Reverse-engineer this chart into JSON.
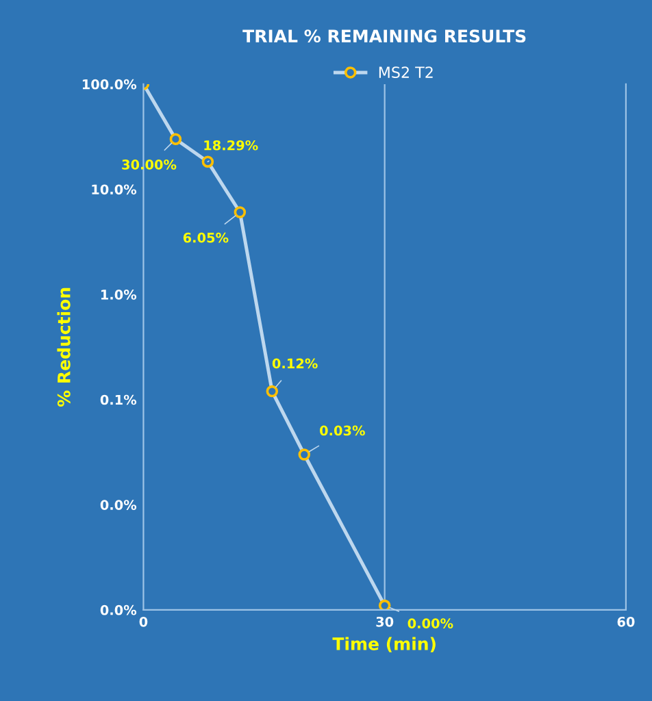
{
  "chart_data": {
    "type": "line",
    "title": "TRIAL % REMAINING RESULTS",
    "xlabel": "Time (min)",
    "ylabel": "% Reduction",
    "x": [
      0,
      4,
      8,
      12,
      16,
      20,
      30
    ],
    "series": [
      {
        "name": "MS2 T2",
        "color": "#bdd7ee",
        "values": [
          100,
          30,
          18.29,
          6.05,
          0.12,
          0.03,
          0.0011
        ],
        "value_labels": [
          null,
          "30.00%",
          "18.29%",
          "6.05%",
          "0.12%",
          "0.03%",
          "0.00%"
        ]
      }
    ],
    "xlim": [
      0,
      60
    ],
    "xticks": [
      0,
      30,
      60
    ],
    "ylim": [
      0.001,
      100
    ],
    "yticks": [
      {
        "value": 100,
        "label": "100.0%"
      },
      {
        "value": 10,
        "label": "10.0%"
      },
      {
        "value": 1,
        "label": "1.0%"
      },
      {
        "value": 0.1,
        "label": "0.1%"
      },
      {
        "value": 0.01,
        "label": "0.0%"
      },
      {
        "value": 0.001,
        "label": "0.0%"
      }
    ],
    "ref_lines": [
      {
        "axis": "x",
        "value": 30,
        "color": "#9dc3e6",
        "line_style": "solid"
      }
    ],
    "log": "y",
    "legend": "top",
    "marker": "circle",
    "line_style": "solid"
  }
}
